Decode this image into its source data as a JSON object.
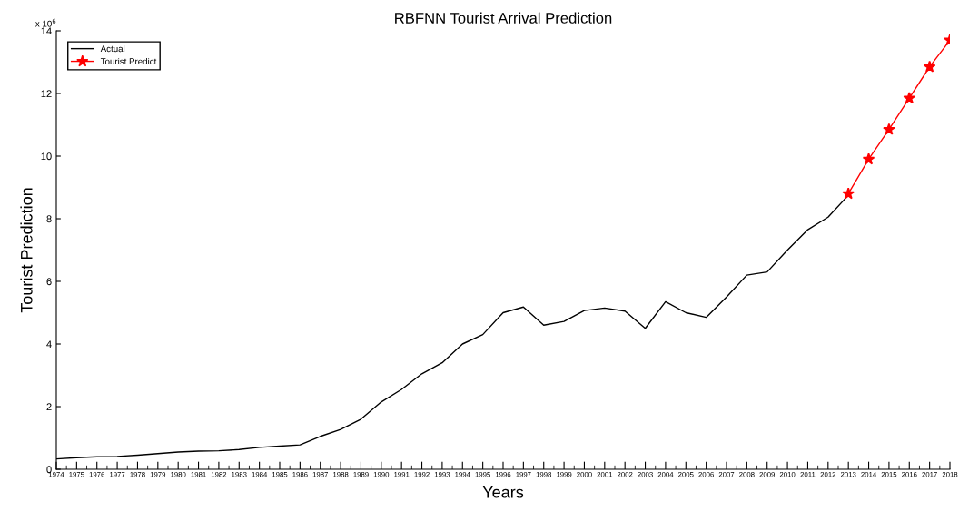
{
  "chart_data": {
    "type": "line",
    "title": "RBFNN Tourist Arrival Prediction",
    "xlabel": "Years",
    "ylabel": "Tourist Prediction",
    "annotations": [
      "x 10$^{6}$"
    ],
    "xlim": [
      1974,
      2018
    ],
    "xticks": [
      1974,
      1975,
      1976,
      1977,
      1978,
      1979,
      1980,
      1981,
      1982,
      1983,
      1984,
      1985,
      1986,
      1987,
      1988,
      1989,
      1990,
      1991,
      1992,
      1993,
      1994,
      1995,
      1996,
      1997,
      1998,
      1999,
      2000,
      2001,
      2002,
      2003,
      2004,
      2005,
      2006,
      2007,
      2008,
      2009,
      2010,
      2011,
      2012,
      2013,
      2014,
      2015,
      2016,
      2017,
      2018
    ],
    "ylim": [
      0,
      14
    ],
    "yticks": [
      0,
      2,
      4,
      6,
      8,
      10,
      12,
      14
    ],
    "grid": false,
    "legend": "top left",
    "series": [
      {
        "name": "Actual",
        "color": "#000000",
        "marker": "none",
        "x": [
          1974,
          1975,
          1976,
          1977,
          1978,
          1979,
          1980,
          1981,
          1982,
          1983,
          1984,
          1985,
          1986,
          1987,
          1988,
          1989,
          1990,
          1991,
          1992,
          1993,
          1994,
          1995,
          1996,
          1997,
          1998,
          1999,
          2000,
          2001,
          2002,
          2003,
          2004,
          2005,
          2006,
          2007,
          2008,
          2009,
          2010,
          2011,
          2012,
          2013
        ],
        "values": [
          0.33,
          0.37,
          0.4,
          0.41,
          0.45,
          0.5,
          0.55,
          0.58,
          0.59,
          0.63,
          0.7,
          0.74,
          0.78,
          1.05,
          1.27,
          1.6,
          2.15,
          2.55,
          3.05,
          3.4,
          4.0,
          4.3,
          5.0,
          5.18,
          4.6,
          4.72,
          5.07,
          5.15,
          5.05,
          4.5,
          5.35,
          5.0,
          4.85,
          5.5,
          6.2,
          6.3,
          7.0,
          7.65,
          8.05,
          8.75
        ]
      },
      {
        "name": "Tourist Predict",
        "color": "#ff0000",
        "marker": "star",
        "x": [
          2013,
          2014,
          2015,
          2016,
          2017,
          2018
        ],
        "values": [
          8.8,
          9.9,
          10.85,
          11.85,
          12.85,
          13.7
        ]
      }
    ]
  }
}
